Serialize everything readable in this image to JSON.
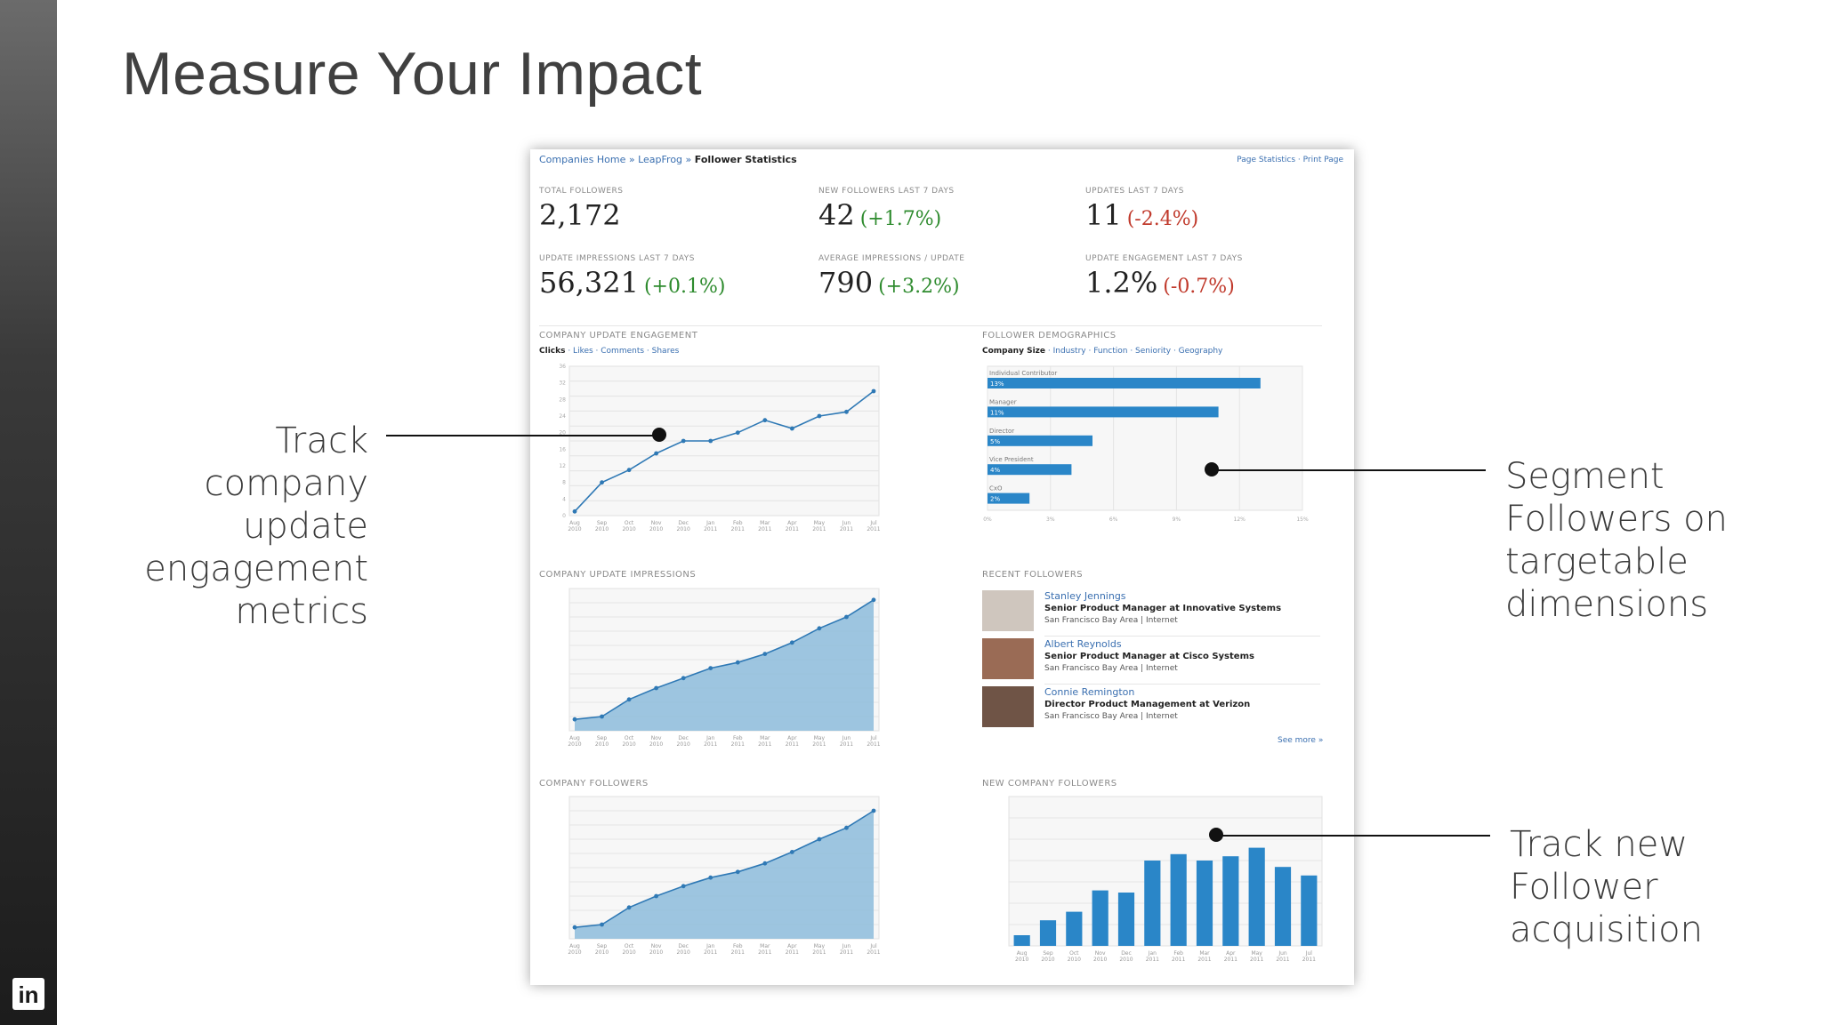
{
  "slide": {
    "title": "Measure Your Impact",
    "callouts": {
      "left": [
        "Track",
        "company",
        "update",
        "engagement",
        "metrics"
      ],
      "right_top": [
        "Segment",
        "Followers on",
        "targetable",
        "dimensions"
      ],
      "right_bottom": [
        "Track new",
        "Follower",
        "acquisition"
      ]
    },
    "logo": "in"
  },
  "screenshot": {
    "breadcrumb": {
      "home": "Companies Home",
      "company": "LeapFrog",
      "current": "Follower Statistics",
      "sep": "»"
    },
    "top_links": "Page Statistics · Print Page",
    "stats": [
      {
        "label": "TOTAL FOLLOWERS",
        "value": "2,172",
        "change": ""
      },
      {
        "label": "NEW FOLLOWERS LAST 7 DAYS",
        "value": "42",
        "change": "(+1.7%)",
        "trend": "up"
      },
      {
        "label": "UPDATES LAST 7 DAYS",
        "value": "11",
        "change": "(-2.4%)",
        "trend": "down"
      },
      {
        "label": "UPDATE IMPRESSIONS LAST 7 DAYS",
        "value": "56,321",
        "change": "(+0.1%)",
        "trend": "up"
      },
      {
        "label": "AVERAGE IMPRESSIONS / UPDATE",
        "value": "790",
        "change": "(+3.2%)",
        "trend": "up"
      },
      {
        "label": "UPDATE ENGAGEMENT LAST 7 DAYS",
        "value": "1.2%",
        "change": "(-0.7%)",
        "trend": "down"
      }
    ],
    "engagement_tabs": {
      "active": "Clicks",
      "others": "· Likes · Comments · Shares"
    },
    "demographics_tabs": {
      "active": "Company Size",
      "others": "· Industry · Function · Seniority · Geography"
    },
    "panels": {
      "engagement": "COMPANY UPDATE ENGAGEMENT",
      "demographics": "FOLLOWER DEMOGRAPHICS",
      "impressions": "COMPANY UPDATE IMPRESSIONS",
      "recent": "RECENT FOLLOWERS",
      "followers": "COMPANY FOLLOWERS",
      "new_followers": "NEW COMPANY FOLLOWERS"
    },
    "recent_followers": [
      {
        "name": "Stanley Jennings",
        "title": "Senior Product Manager at Innovative Systems",
        "location": "San Francisco Bay Area | Internet"
      },
      {
        "name": "Albert Reynolds",
        "title": "Senior Product Manager at Cisco Systems",
        "location": "San Francisco Bay Area | Internet"
      },
      {
        "name": "Connie Remington",
        "title": "Director Product Management at Verizon",
        "location": "San Francisco Bay Area | Internet"
      }
    ],
    "see_more": "See more »"
  },
  "chart_data": [
    {
      "type": "line",
      "title": "COMPANY UPDATE ENGAGEMENT",
      "categories": [
        "Aug 2010",
        "Sep 2010",
        "Oct 2010",
        "Nov 2010",
        "Dec 2010",
        "Jan 2011",
        "Feb 2011",
        "Mar 2011",
        "Apr 2011",
        "May 2011",
        "Jun 2011",
        "Jul 2011"
      ],
      "values": [
        1,
        8,
        11,
        15,
        18,
        18,
        20,
        23,
        21,
        24,
        25,
        30
      ],
      "y_ticks": [
        0,
        4,
        8,
        12,
        16,
        20,
        24,
        28,
        32,
        36
      ],
      "ylim": [
        0,
        36
      ]
    },
    {
      "type": "bar",
      "orientation": "horizontal",
      "title": "FOLLOWER DEMOGRAPHICS",
      "categories": [
        "Individual Contributor",
        "Manager",
        "Director",
        "Vice President",
        "CxO"
      ],
      "values": [
        13,
        11,
        5,
        4,
        2
      ],
      "value_labels": [
        "13%",
        "11%",
        "5%",
        "4%",
        "2%"
      ],
      "x_ticks": [
        "0%",
        "3%",
        "6%",
        "9%",
        "12%",
        "15%"
      ],
      "xlim": [
        0,
        15
      ]
    },
    {
      "type": "area",
      "title": "COMPANY UPDATE IMPRESSIONS",
      "categories": [
        "Aug 2010",
        "Sep 2010",
        "Oct 2010",
        "Nov 2010",
        "Dec 2010",
        "Jan 2011",
        "Feb 2011",
        "Mar 2011",
        "Apr 2011",
        "May 2011",
        "Jun 2011",
        "Jul 2011"
      ],
      "values": [
        8,
        10,
        22,
        30,
        37,
        44,
        48,
        54,
        62,
        72,
        80,
        92
      ],
      "ylim": [
        0,
        100
      ]
    },
    {
      "type": "area",
      "title": "COMPANY FOLLOWERS",
      "categories": [
        "Aug 2010",
        "Sep 2010",
        "Oct 2010",
        "Nov 2010",
        "Dec 2010",
        "Jan 2011",
        "Feb 2011",
        "Mar 2011",
        "Apr 2011",
        "May 2011",
        "Jun 2011",
        "Jul 2011"
      ],
      "values": [
        8,
        10,
        22,
        30,
        37,
        43,
        47,
        53,
        61,
        70,
        78,
        90
      ],
      "ylim": [
        0,
        100
      ]
    },
    {
      "type": "bar",
      "title": "NEW COMPANY FOLLOWERS",
      "categories": [
        "Aug 2010",
        "Sep 2010",
        "Oct 2010",
        "Nov 2010",
        "Dec 2010",
        "Jan 2011",
        "Feb 2011",
        "Mar 2011",
        "Apr 2011",
        "May 2011",
        "Jun 2011",
        "Jul 2011"
      ],
      "values": [
        5,
        12,
        16,
        26,
        25,
        40,
        43,
        40,
        42,
        46,
        37,
        33
      ],
      "ylim": [
        0,
        70
      ]
    }
  ]
}
